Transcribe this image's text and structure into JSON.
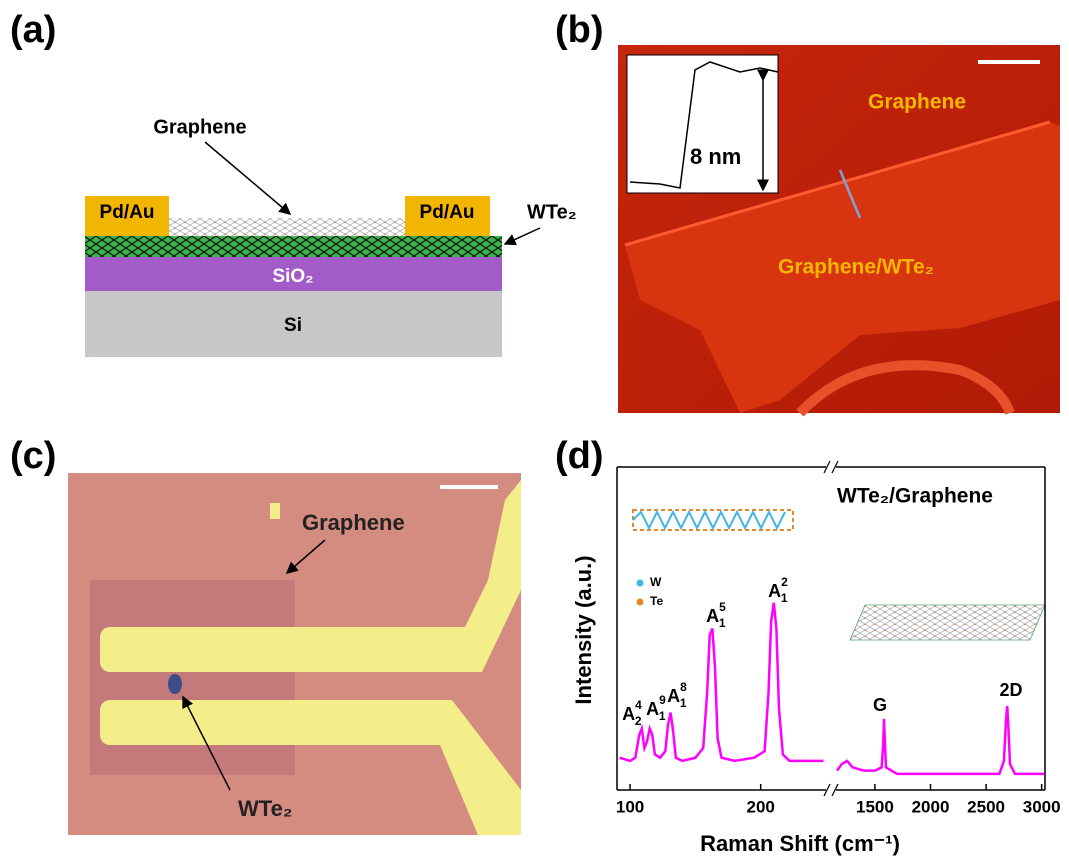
{
  "panels": {
    "a": {
      "label": "(a)",
      "graphene": "Graphene",
      "contacts": [
        "Pd/Au",
        "Pd/Au"
      ],
      "wte2": "WTe₂",
      "sio2": "SiO₂",
      "si": "Si"
    },
    "b": {
      "label": "(b)",
      "inset_height": "8 nm",
      "graphene": "Graphene",
      "heterostructure": "Graphene/WTe₂"
    },
    "c": {
      "label": "(c)",
      "graphene": "Graphene",
      "wte2": "WTe₂"
    },
    "d": {
      "label": "(d)"
    }
  },
  "chart_data": {
    "type": "line",
    "xlabel": "Raman Shift (cm⁻¹)",
    "ylabel": "Intensity (a.u.)",
    "sample_label": "WTe₂/Graphene",
    "legend_atoms": [
      "W",
      "Te"
    ],
    "color": "#ff00ff",
    "ylim": [
      0,
      1
    ],
    "peak_labels": [
      {
        "base": "A",
        "sub": "2",
        "sup": "4"
      },
      {
        "base": "A",
        "sub": "1",
        "sup": "9"
      },
      {
        "base": "A",
        "sub": "1",
        "sup": "8"
      },
      {
        "base": "A",
        "sub": "1",
        "sup": "5"
      },
      {
        "base": "A",
        "sub": "1",
        "sup": "2"
      },
      {
        "base": "G"
      },
      {
        "base": "2D"
      }
    ],
    "segments": [
      {
        "xlim": [
          90,
          250
        ],
        "xticks": [
          100,
          200
        ],
        "x": [
          92,
          100,
          104,
          107,
          109,
          111,
          113,
          115,
          117,
          119,
          123,
          127,
          129,
          131,
          133,
          135,
          140,
          150,
          156,
          159,
          161,
          163,
          165,
          167,
          170,
          180,
          195,
          203,
          206,
          208,
          210,
          212,
          214,
          217,
          222,
          235,
          248
        ],
        "values": [
          0.1,
          0.09,
          0.1,
          0.17,
          0.19,
          0.13,
          0.15,
          0.19,
          0.17,
          0.11,
          0.1,
          0.12,
          0.2,
          0.24,
          0.18,
          0.1,
          0.09,
          0.1,
          0.13,
          0.3,
          0.48,
          0.5,
          0.38,
          0.16,
          0.1,
          0.09,
          0.1,
          0.12,
          0.3,
          0.52,
          0.58,
          0.5,
          0.25,
          0.11,
          0.09,
          0.09,
          0.09
        ]
      },
      {
        "xlim": [
          1150,
          3030
        ],
        "xticks": [
          1500,
          2000,
          2500,
          3000
        ],
        "x": [
          1160,
          1200,
          1250,
          1300,
          1400,
          1500,
          1560,
          1575,
          1582,
          1590,
          1600,
          1700,
          2000,
          2400,
          2620,
          2660,
          2680,
          2690,
          2700,
          2715,
          2760,
          3000,
          3025
        ],
        "values": [
          0.06,
          0.08,
          0.09,
          0.07,
          0.06,
          0.06,
          0.07,
          0.14,
          0.22,
          0.15,
          0.07,
          0.05,
          0.05,
          0.05,
          0.05,
          0.09,
          0.22,
          0.26,
          0.2,
          0.08,
          0.05,
          0.05,
          0.05
        ]
      }
    ]
  }
}
